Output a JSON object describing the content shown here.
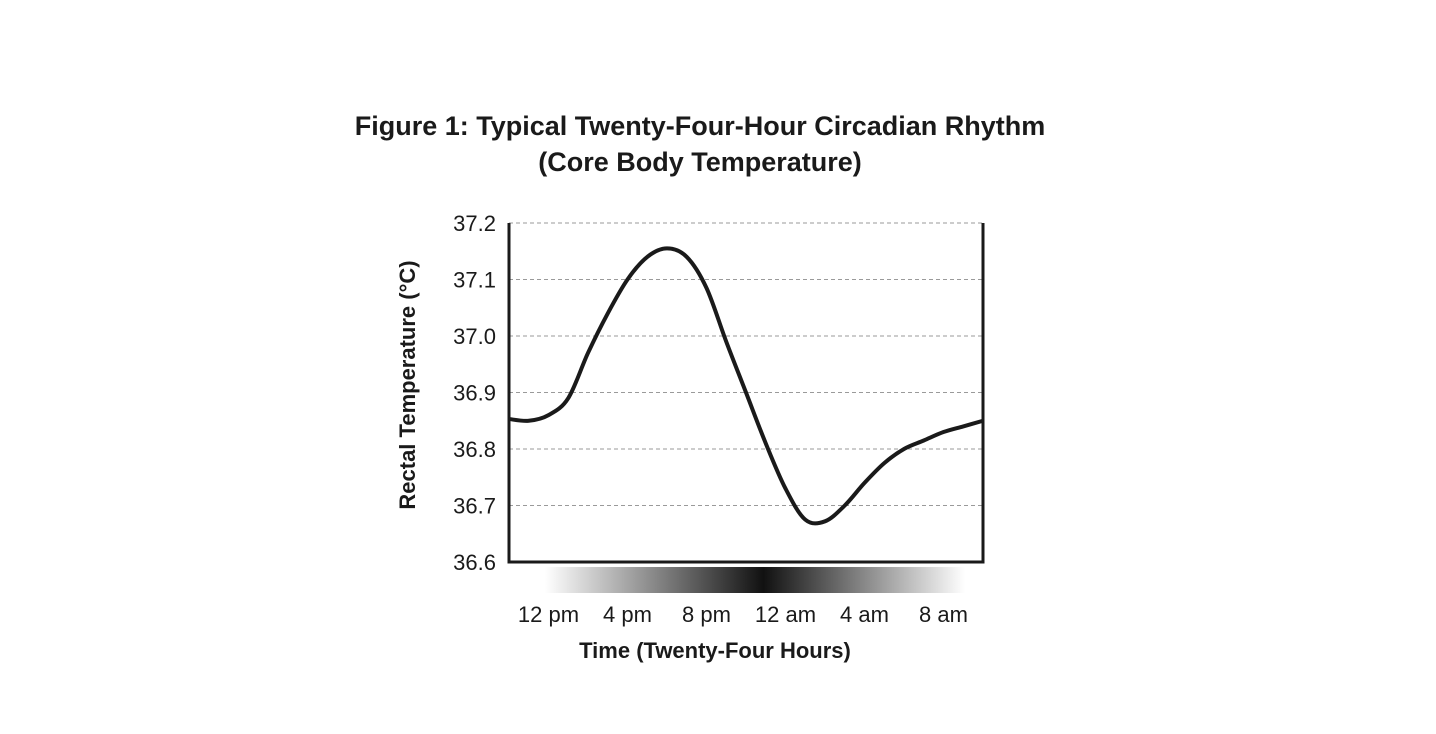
{
  "chart_data": {
    "type": "line",
    "title": "Figure 1: Typical Twenty-Four-Hour Circadian Rhythm",
    "subtitle": "(Core Body Temperature)",
    "xlabel": "Time (Twenty-Four Hours)",
    "ylabel": "Rectal Temperature (°C)",
    "x_tick_labels": [
      "12 pm",
      "4 pm",
      "8 pm",
      "12 am",
      "4 am",
      "8 am"
    ],
    "x_tick_hours": [
      12,
      16,
      20,
      24,
      28,
      32
    ],
    "xlim": [
      10,
      34
    ],
    "ylim": [
      36.6,
      37.2
    ],
    "y_tick_labels": [
      "37.2",
      "37.1",
      "37.0",
      "36.9",
      "36.8",
      "36.7",
      "36.6"
    ],
    "y_ticks": [
      37.2,
      37.1,
      37.0,
      36.9,
      36.8,
      36.7,
      36.6
    ],
    "grid": "horizontal dashed",
    "line_color": "#1a1a1a",
    "series": [
      {
        "x": [
          10,
          11,
          12,
          13,
          14,
          15,
          16,
          17,
          18,
          19,
          20,
          21,
          22,
          23,
          24,
          25,
          26,
          27,
          28,
          29,
          30,
          31,
          32,
          33,
          34
        ],
        "values": [
          36.853,
          36.85,
          36.86,
          36.89,
          36.97,
          37.04,
          37.1,
          37.14,
          37.155,
          37.14,
          37.085,
          36.99,
          36.9,
          36.81,
          36.73,
          36.675,
          36.672,
          36.7,
          36.74,
          36.775,
          36.8,
          36.815,
          36.83,
          36.84,
          36.85
        ]
      }
    ]
  }
}
